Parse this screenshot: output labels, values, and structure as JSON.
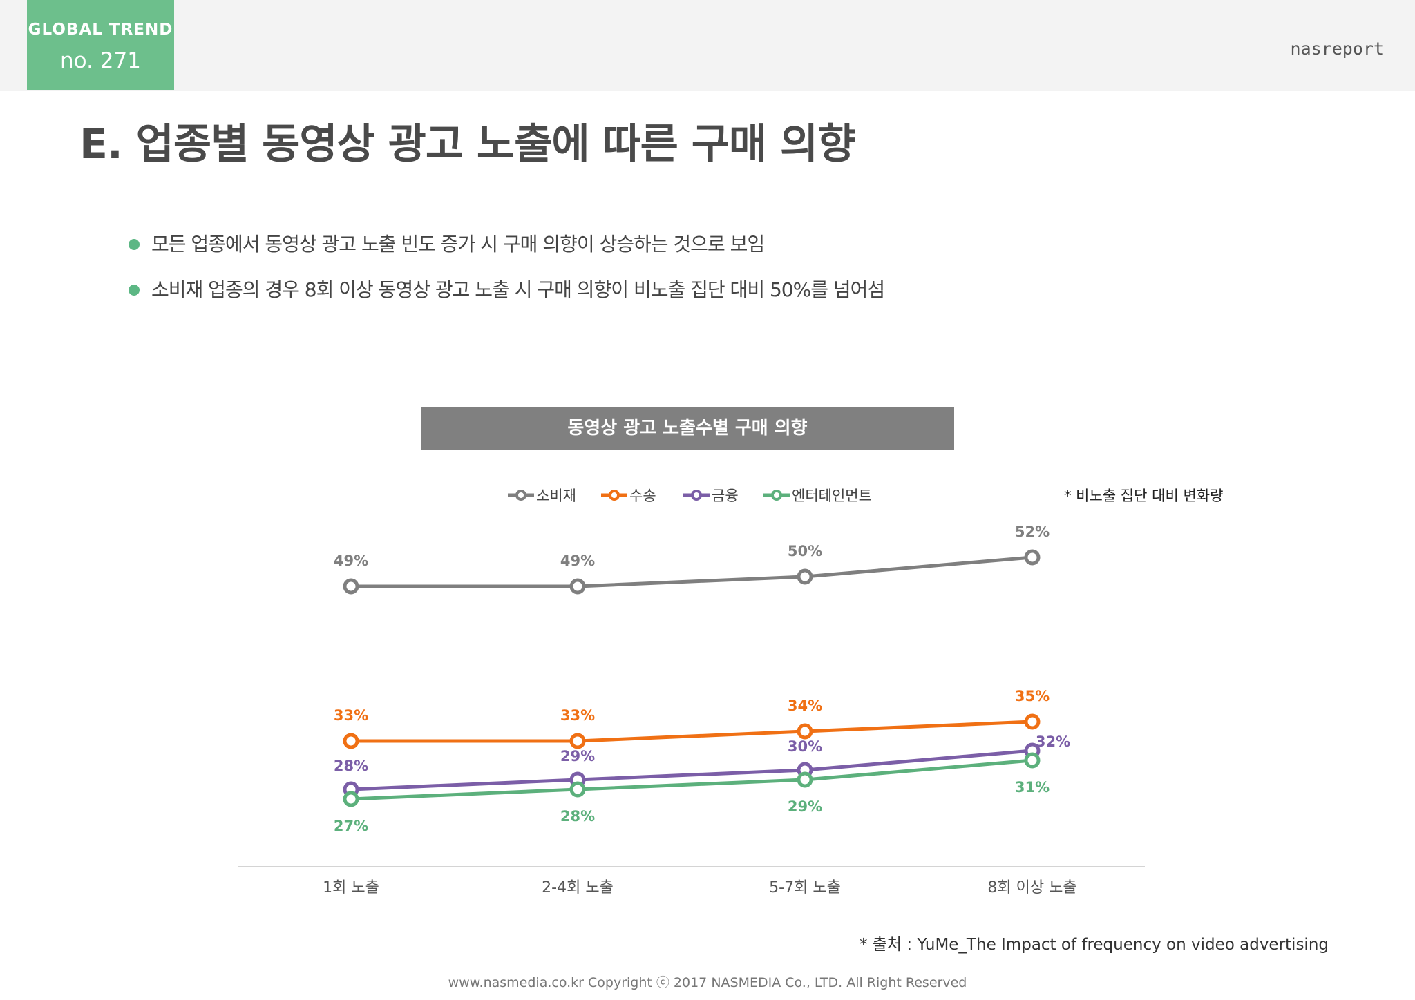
{
  "header": {
    "badge_line1": "GLOBAL TREND",
    "badge_line2": "no. 271",
    "brand": "nasreport"
  },
  "title": "E. 업종별 동영상 광고 노출에 따른 구매 의향",
  "bullets": [
    "모든 업종에서 동영상 광고 노출 빈도 증가 시 구매 의향이 상승하는 것으로 보임",
    "소비재 업종의 경우 8회 이상 동영상 광고 노출 시 구매 의향이 비노출 집단 대비 50%를 넘어섬"
  ],
  "chart_data": {
    "type": "line",
    "title": "동영상 광고 노출수별 구매 의향",
    "note": "* 비노출 집단 대비 변화량",
    "categories": [
      "1회 노출",
      "2-4회 노출",
      "5-7회 노출",
      "8회 이상 노출"
    ],
    "series": [
      {
        "name": "소비재",
        "color": "#7f7f7f",
        "values": [
          49,
          49,
          50,
          52
        ]
      },
      {
        "name": "수송",
        "color": "#f07014",
        "values": [
          33,
          33,
          34,
          35
        ]
      },
      {
        "name": "금융",
        "color": "#7b5ea7",
        "values": [
          28,
          29,
          30,
          32
        ]
      },
      {
        "name": "엔터테인먼트",
        "color": "#5cb07c",
        "values": [
          27,
          28,
          29,
          31
        ]
      }
    ],
    "value_suffix": "%",
    "legend_position": "top-center",
    "grid": false
  },
  "footer": {
    "source": "* 출처 : YuMe_The Impact of frequency on video advertising",
    "copyright": "www.nasmedia.co.kr Copyright ⓒ 2017 NASMEDIA Co., LTD. All Right Reserved"
  }
}
